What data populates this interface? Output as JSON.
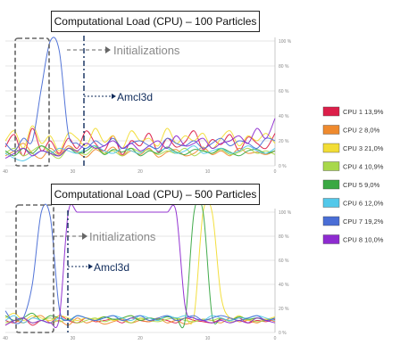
{
  "colors": {
    "cpu1": "#dc1f4a",
    "cpu2": "#ef8a2e",
    "cpu3": "#f2dd36",
    "cpu4": "#a8d84a",
    "cpu5": "#3aa843",
    "cpu6": "#52c8ea",
    "cpu7": "#4a6ed6",
    "cpu8": "#8e2bd0",
    "annotation": "#0e2a5a",
    "init_box": "#666666",
    "grid": "#cccccc",
    "tick": "#888888"
  },
  "chart_data": [
    {
      "type": "line",
      "title": "Computational Load (CPU) – 100 Particles",
      "x_ticks": [
        "40",
        "30",
        "20",
        "10",
        "0"
      ],
      "y_ticks": [
        "0 %",
        "20 %",
        "40 %",
        "60 %",
        "80 %",
        "100 %"
      ],
      "xlim": [
        40,
        0
      ],
      "ylim": [
        0,
        100
      ],
      "grid": "horizontal",
      "annotations": [
        "Initializations",
        "Amcl3d"
      ],
      "series": [
        {
          "key": "cpu1",
          "values": [
            15,
            25,
            8,
            30,
            12,
            20,
            10,
            22,
            14,
            28,
            18,
            12,
            24,
            9,
            20,
            16,
            26,
            11,
            22,
            15,
            19,
            28,
            13,
            21,
            17,
            25,
            12,
            23,
            18,
            14,
            26
          ]
        },
        {
          "key": "cpu2",
          "values": [
            8,
            12,
            18,
            10,
            6,
            14,
            9,
            16,
            11,
            7,
            13,
            10,
            15,
            8,
            12,
            9,
            14,
            7,
            11,
            13,
            8,
            10,
            15,
            9,
            12,
            8,
            14,
            10,
            11,
            9,
            12
          ]
        },
        {
          "key": "cpu3",
          "values": [
            20,
            28,
            14,
            32,
            18,
            24,
            12,
            26,
            22,
            16,
            30,
            19,
            24,
            14,
            28,
            20,
            22,
            16,
            30,
            18,
            24,
            20,
            26,
            14,
            22,
            28,
            16,
            24,
            20,
            26,
            18
          ]
        },
        {
          "key": "cpu4",
          "values": [
            10,
            14,
            8,
            12,
            16,
            10,
            6,
            14,
            12,
            9,
            15,
            10,
            12,
            8,
            14,
            11,
            13,
            9,
            12,
            10,
            14,
            8,
            12,
            10,
            13,
            9,
            11,
            14,
            10,
            12,
            9
          ]
        },
        {
          "key": "cpu5",
          "values": [
            12,
            8,
            14,
            10,
            16,
            12,
            8,
            14,
            10,
            12,
            16,
            9,
            13,
            11,
            14,
            8,
            12,
            10,
            15,
            11,
            9,
            13,
            12,
            10,
            14,
            11,
            8,
            12,
            13,
            10,
            12
          ]
        },
        {
          "key": "cpu6",
          "values": [
            10,
            6,
            4,
            8,
            12,
            10,
            14,
            12,
            10,
            14,
            16,
            12,
            10,
            14,
            12,
            10,
            16,
            12,
            14,
            10,
            12,
            16,
            10,
            12,
            14,
            10,
            12,
            16,
            12,
            10,
            14
          ]
        },
        {
          "key": "cpu7",
          "values": [
            18,
            12,
            22,
            20,
            62,
            100,
            92,
            26,
            18,
            14,
            20,
            16,
            22,
            14,
            18,
            20,
            16,
            14,
            22,
            18,
            16,
            20,
            14,
            18,
            22,
            16,
            20,
            18,
            14,
            22,
            20
          ]
        },
        {
          "key": "cpu8",
          "values": [
            6,
            10,
            14,
            8,
            12,
            10,
            8,
            14,
            12,
            18,
            14,
            16,
            20,
            14,
            18,
            12,
            16,
            20,
            14,
            24,
            16,
            18,
            22,
            14,
            18,
            20,
            24,
            18,
            30,
            22,
            38
          ]
        }
      ]
    },
    {
      "type": "line",
      "title": "Computational Load (CPU) – 500 Particles",
      "x_ticks": [
        "40",
        "30",
        "20",
        "10",
        "0"
      ],
      "y_ticks": [
        "0 %",
        "20 %",
        "40 %",
        "60 %",
        "80 %",
        "100 %"
      ],
      "xlim": [
        40,
        0
      ],
      "ylim": [
        0,
        100
      ],
      "grid": "horizontal",
      "annotations": [
        "Initializations",
        "Amcl3d"
      ],
      "series": [
        {
          "key": "cpu1",
          "values": [
            10,
            8,
            12,
            6,
            10,
            8,
            14,
            10,
            8,
            12,
            9,
            10,
            11,
            8,
            12,
            10,
            9,
            11,
            10,
            8,
            12,
            10,
            9,
            8,
            11,
            10,
            12,
            8,
            10,
            9,
            11
          ]
        },
        {
          "key": "cpu2",
          "values": [
            6,
            10,
            8,
            12,
            14,
            8,
            10,
            6,
            12,
            8,
            10,
            7,
            9,
            11,
            8,
            10,
            9,
            12,
            8,
            10,
            7,
            9,
            11,
            10,
            8,
            12,
            9,
            10,
            8,
            11,
            9
          ]
        },
        {
          "key": "cpu3",
          "values": [
            12,
            16,
            10,
            14,
            12,
            10,
            14,
            12,
            10,
            12,
            11,
            13,
            10,
            12,
            14,
            11,
            12,
            10,
            13,
            11,
            12,
            14,
            100,
            100,
            30,
            12,
            14,
            10,
            12,
            11,
            13
          ]
        },
        {
          "key": "cpu4",
          "values": [
            8,
            10,
            12,
            8,
            10,
            12,
            9,
            11,
            8,
            10,
            12,
            9,
            11,
            10,
            8,
            12,
            10,
            9,
            11,
            12,
            10,
            9,
            11,
            10,
            12,
            9,
            10,
            11,
            9,
            10,
            12
          ]
        },
        {
          "key": "cpu5",
          "values": [
            14,
            10,
            12,
            16,
            10,
            14,
            12,
            10,
            14,
            12,
            10,
            13,
            11,
            12,
            14,
            10,
            12,
            11,
            13,
            12,
            10,
            100,
            100,
            14,
            12,
            10,
            13,
            11,
            12,
            10,
            12
          ]
        },
        {
          "key": "cpu6",
          "values": [
            10,
            14,
            8,
            12,
            10,
            8,
            12,
            10,
            14,
            12,
            10,
            12,
            14,
            12,
            10,
            14,
            12,
            10,
            14,
            12,
            14,
            12,
            10,
            14,
            12,
            10,
            12,
            12,
            14,
            12,
            10
          ]
        },
        {
          "key": "cpu7",
          "values": [
            18,
            8,
            12,
            40,
            100,
            96,
            20,
            10,
            14,
            12,
            10,
            12,
            14,
            10,
            12,
            14,
            10,
            12,
            14,
            10,
            12,
            14,
            10,
            12,
            14,
            12,
            10,
            12,
            14,
            10,
            12
          ]
        },
        {
          "key": "cpu8",
          "values": [
            6,
            10,
            12,
            8,
            10,
            8,
            12,
            100,
            100,
            100,
            100,
            100,
            100,
            100,
            100,
            100,
            100,
            100,
            100,
            100,
            22,
            12,
            10,
            8,
            10,
            8,
            10,
            8,
            12,
            10,
            8
          ]
        }
      ]
    }
  ],
  "legend": [
    {
      "key": "cpu1",
      "label": "CPU 1",
      "value": "13,9%"
    },
    {
      "key": "cpu2",
      "label": "CPU 2",
      "value": "8,0%"
    },
    {
      "key": "cpu3",
      "label": "CPU 3",
      "value": "21,0%"
    },
    {
      "key": "cpu4",
      "label": "CPU 4",
      "value": "10,9%"
    },
    {
      "key": "cpu5",
      "label": "CPU 5",
      "value": "9,0%"
    },
    {
      "key": "cpu6",
      "label": "CPU 6",
      "value": "12,0%"
    },
    {
      "key": "cpu7",
      "label": "CPU 7",
      "value": "19,2%"
    },
    {
      "key": "cpu8",
      "label": "CPU 8",
      "value": "10,0%"
    }
  ]
}
